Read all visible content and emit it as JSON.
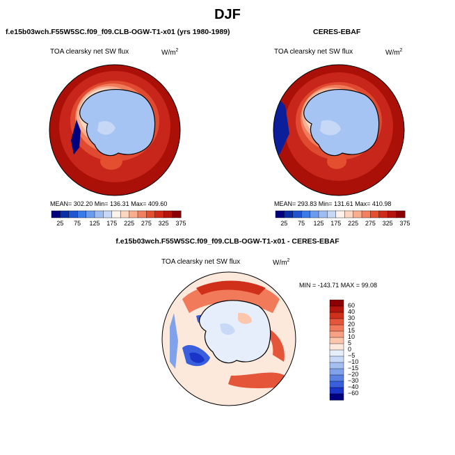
{
  "figure": {
    "title": "DJF",
    "diff_title": "f.e15b03wch.F55W5SC.f09_f09.CLB-OGW-T1-x01 - CERES-EBAF"
  },
  "panels": [
    {
      "header": "f.e15b03wch.F55W5SC.f09_f09.CLB-OGW-T1-x01 (yrs 1980-1989)",
      "variable": "TOA clearsky net SW flux",
      "units_base": "W/m",
      "units_exp": "2",
      "stats": "MEAN= 302.20    Min= 136.31    Max= 409.60"
    },
    {
      "header": "CERES-EBAF",
      "variable": "TOA clearsky net SW flux",
      "units_base": "W/m",
      "units_exp": "2",
      "stats": "MEAN= 293.83    Min= 131.61    Max= 410.98"
    }
  ],
  "diff_panel": {
    "variable": "TOA clearsky net SW flux",
    "units_base": "W/m",
    "units_exp": "2",
    "stats": "MIN = -143.71 MAX =  99.08"
  },
  "chart_data": [
    {
      "type": "heatmap",
      "title": "TOA clearsky net SW flux",
      "subtitle": "f.e15b03wch.F55W5SC.f09_f09.CLB-OGW-T1-x01 (yrs 1980-1989)",
      "projection": "south-polar-stereographic",
      "mean": 302.2,
      "min": 136.31,
      "max": 409.6,
      "colorbar_ticks": [
        "25",
        "75",
        "125",
        "175",
        "225",
        "275",
        "325",
        "375"
      ],
      "colorbar_colors": [
        "#00007f",
        "#0c2fa8",
        "#1f55d0",
        "#3b7be8",
        "#6a9bef",
        "#9dbcf2",
        "#c6d8f5",
        "#fdf3ea",
        "#fbd7c2",
        "#f7ad8e",
        "#f0805f",
        "#e4502f",
        "#cf2a17",
        "#b3140c",
        "#8b0000"
      ]
    },
    {
      "type": "heatmap",
      "title": "TOA clearsky net SW flux",
      "subtitle": "CERES-EBAF",
      "projection": "south-polar-stereographic",
      "mean": 293.83,
      "min": 131.61,
      "max": 410.98,
      "colorbar_ticks": [
        "25",
        "75",
        "125",
        "175",
        "225",
        "275",
        "325",
        "375"
      ],
      "colorbar_colors": [
        "#00007f",
        "#0c2fa8",
        "#1f55d0",
        "#3b7be8",
        "#6a9bef",
        "#9dbcf2",
        "#c6d8f5",
        "#fdf3ea",
        "#fbd7c2",
        "#f7ad8e",
        "#f0805f",
        "#e4502f",
        "#cf2a17",
        "#b3140c",
        "#8b0000"
      ]
    },
    {
      "type": "heatmap",
      "title": "TOA clearsky net SW flux",
      "subtitle": "f.e15b03wch.F55W5SC.f09_f09.CLB-OGW-T1-x01 - CERES-EBAF",
      "projection": "south-polar-stereographic",
      "min": -143.71,
      "max": 99.08,
      "colorbar_levels": [
        "60",
        "40",
        "30",
        "20",
        "15",
        "10",
        "5",
        "0",
        "−5",
        "−10",
        "−15",
        "−20",
        "−30",
        "−40",
        "−60"
      ],
      "colorbar_colors": [
        "#8b0000",
        "#b3140c",
        "#d0301a",
        "#e5553a",
        "#f07a5a",
        "#f7a084",
        "#fcc6ad",
        "#fde8dc",
        "#e6eefb",
        "#c7d9f7",
        "#a3bff0",
        "#7fa2ea",
        "#5b82e3",
        "#3a5fdc",
        "#1a33c8",
        "#00007f"
      ]
    }
  ]
}
